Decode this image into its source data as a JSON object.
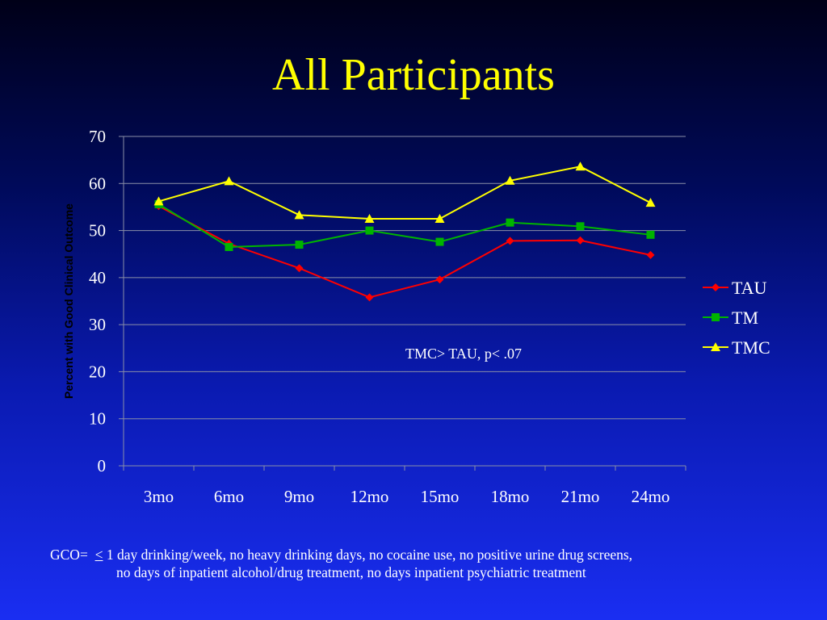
{
  "title": "All Participants",
  "annotation": "TMC> TAU, p<  .07",
  "footnote": {
    "prefix": "GCO=",
    "lte_symbol": "<",
    "line1": "1 day drinking/week, no heavy drinking days, no cocaine use, no positive urine drug screens,",
    "line2": "no days of inpatient alcohol/drug treatment, no days inpatient psychiatric treatment"
  },
  "chart_data": {
    "type": "line",
    "ylabel": "Percent with Good Clinical Outcome",
    "xlabel": "",
    "categories": [
      "3mo",
      "6mo",
      "9mo",
      "12mo",
      "15mo",
      "18mo",
      "21mo",
      "24mo"
    ],
    "ylim": [
      0,
      70
    ],
    "yticks": [
      0,
      10,
      20,
      30,
      40,
      50,
      60,
      70
    ],
    "grid": true,
    "legend_position": "right",
    "series": [
      {
        "name": "TAU",
        "color": "#ff0000",
        "marker": "diamond",
        "values": [
          55.2,
          47.2,
          42.0,
          35.8,
          39.6,
          47.8,
          47.9,
          44.8
        ]
      },
      {
        "name": "TM",
        "color": "#00b400",
        "marker": "square",
        "values": [
          55.6,
          46.5,
          47.0,
          50.0,
          47.6,
          51.7,
          50.9,
          49.1
        ]
      },
      {
        "name": "TMC",
        "color": "#ffff00",
        "marker": "triangle",
        "values": [
          56.2,
          60.5,
          53.3,
          52.5,
          52.5,
          60.6,
          63.6,
          55.9
        ]
      }
    ]
  }
}
